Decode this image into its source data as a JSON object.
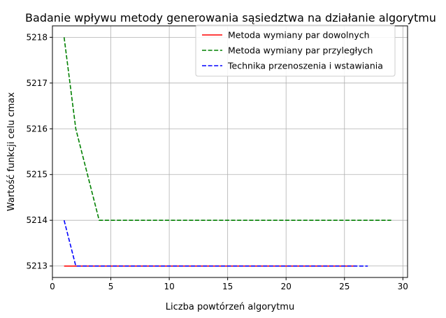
{
  "chart_data": {
    "type": "line",
    "title": "Badanie wpływu metody generowania sąsiedztwa na działanie algorytmu",
    "xlabel": "Liczba powtórzeń algorytmu",
    "ylabel": "Wartość funkcji celu cmax",
    "xlim": [
      0.0,
      30.4
    ],
    "ylim": [
      5212.75,
      5218.25
    ],
    "xticks": [
      0,
      5,
      10,
      15,
      20,
      25,
      30
    ],
    "yticks": [
      5213,
      5214,
      5215,
      5216,
      5217,
      5218
    ],
    "grid": true,
    "legend_position": "top-right",
    "series": [
      {
        "name": "Metoda wymiany par dowolnych",
        "color": "#ff0000",
        "dash": "solid",
        "x": [
          1,
          2,
          3,
          4,
          5,
          6,
          7,
          8,
          9,
          10,
          11,
          12,
          13,
          14,
          15,
          16,
          17,
          18,
          19,
          20,
          21,
          22,
          23,
          24,
          25,
          26
        ],
        "y": [
          5213,
          5213,
          5213,
          5213,
          5213,
          5213,
          5213,
          5213,
          5213,
          5213,
          5213,
          5213,
          5213,
          5213,
          5213,
          5213,
          5213,
          5213,
          5213,
          5213,
          5213,
          5213,
          5213,
          5213,
          5213,
          5213
        ]
      },
      {
        "name": "Metoda wymiany par przyległych",
        "color": "#008000",
        "dash": "dashed",
        "x": [
          1,
          2,
          3,
          4,
          5,
          6,
          7,
          8,
          9,
          10,
          11,
          12,
          13,
          14,
          15,
          16,
          17,
          18,
          19,
          20,
          21,
          22,
          23,
          24,
          25,
          26,
          27,
          28,
          29
        ],
        "y": [
          5218,
          5216,
          5215,
          5214,
          5214,
          5214,
          5214,
          5214,
          5214,
          5214,
          5214,
          5214,
          5214,
          5214,
          5214,
          5214,
          5214,
          5214,
          5214,
          5214,
          5214,
          5214,
          5214,
          5214,
          5214,
          5214,
          5214,
          5214,
          5214
        ]
      },
      {
        "name": "Technika przenoszenia i wstawiania",
        "color": "#0000ff",
        "dash": "dashed",
        "x": [
          1,
          2,
          3,
          4,
          5,
          6,
          7,
          8,
          9,
          10,
          11,
          12,
          13,
          14,
          15,
          16,
          17,
          18,
          19,
          20,
          21,
          22,
          23,
          24,
          25,
          26,
          27
        ],
        "y": [
          5214,
          5213,
          5213,
          5213,
          5213,
          5213,
          5213,
          5213,
          5213,
          5213,
          5213,
          5213,
          5213,
          5213,
          5213,
          5213,
          5213,
          5213,
          5213,
          5213,
          5213,
          5213,
          5213,
          5213,
          5213,
          5213,
          5213
        ]
      }
    ]
  }
}
